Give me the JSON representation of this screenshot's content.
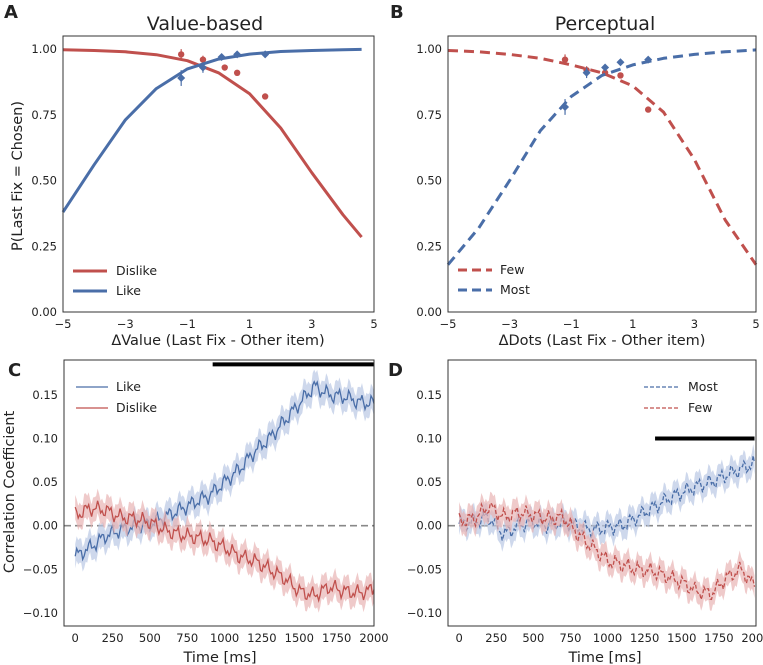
{
  "figure": {
    "panels": [
      {
        "id": "A",
        "letter": "A",
        "title": "Value-based"
      },
      {
        "id": "B",
        "letter": "B",
        "title": "Perceptual"
      },
      {
        "id": "C",
        "letter": "C",
        "title": ""
      },
      {
        "id": "D",
        "letter": "D",
        "title": ""
      }
    ]
  },
  "colors": {
    "red": "#c0504d",
    "blue": "#4a6ea8",
    "red_light": "#e8b4b4",
    "blue_light": "#b9c8e4",
    "sig_bar": "#000000",
    "zero_line": "#888888"
  },
  "chart_data": [
    {
      "id": "A",
      "type": "line",
      "title": "Value-based",
      "xlabel": "ΔValue (Last Fix - Other item)",
      "ylabel": "P(Last Fix = Chosen)",
      "xlim": [
        -5,
        5
      ],
      "ylim": [
        0,
        1.05
      ],
      "xticks": [
        -5,
        -3,
        -1,
        1,
        3,
        5
      ],
      "xtick_labels": [
        "−5",
        "−3",
        "−1",
        "1",
        "3",
        "5"
      ],
      "yticks": [
        0,
        0.25,
        0.5,
        0.75,
        1.0
      ],
      "ytick_labels": [
        "0.00",
        "0.25",
        "0.50",
        "0.75",
        "1.00"
      ],
      "line_style": "solid",
      "legend_loc": "lower-left",
      "series": [
        {
          "name": "Dislike",
          "color": "red",
          "curve": {
            "x": [
              -5,
              -4,
              -3,
              -2,
              -1,
              0,
              1,
              2,
              3,
              4,
              4.6
            ],
            "y": [
              0.998,
              0.995,
              0.99,
              0.979,
              0.956,
              0.91,
              0.83,
              0.7,
              0.53,
              0.37,
              0.285
            ]
          },
          "points": [
            {
              "x": -1.2,
              "y": 0.98,
              "err": 0.02
            },
            {
              "x": -0.5,
              "y": 0.96,
              "err": 0.015
            },
            {
              "x": 0.2,
              "y": 0.93,
              "err": 0.01
            },
            {
              "x": 0.6,
              "y": 0.91,
              "err": 0.01
            },
            {
              "x": 1.5,
              "y": 0.82,
              "err": 0.01
            }
          ]
        },
        {
          "name": "Like",
          "color": "blue",
          "curve": {
            "x": [
              -5,
              -4,
              -3,
              -2,
              -1,
              0,
              1,
              2,
              3,
              4,
              4.6
            ],
            "y": [
              0.38,
              0.56,
              0.73,
              0.85,
              0.925,
              0.962,
              0.981,
              0.991,
              0.995,
              0.998,
              0.999
            ]
          },
          "points": [
            {
              "x": -1.2,
              "y": 0.89,
              "err": 0.03
            },
            {
              "x": -0.5,
              "y": 0.93,
              "err": 0.02
            },
            {
              "x": 0.1,
              "y": 0.97,
              "err": 0.01
            },
            {
              "x": 0.6,
              "y": 0.98,
              "err": 0.01
            },
            {
              "x": 1.5,
              "y": 0.98,
              "err": 0.01
            }
          ]
        }
      ]
    },
    {
      "id": "B",
      "type": "line",
      "title": "Perceptual",
      "xlabel": "ΔDots (Last Fix - Other item)",
      "ylabel": "",
      "xlim": [
        -5,
        5
      ],
      "ylim": [
        0,
        1.05
      ],
      "xticks": [
        -5,
        -3,
        -1,
        1,
        3,
        5
      ],
      "xtick_labels": [
        "−5",
        "−3",
        "−1",
        "1",
        "3",
        "5"
      ],
      "yticks": [
        0,
        0.25,
        0.5,
        0.75,
        1.0
      ],
      "ytick_labels": [
        "0.00",
        "0.25",
        "0.50",
        "0.75",
        "1.00"
      ],
      "line_style": "dashed",
      "legend_loc": "lower-left",
      "series": [
        {
          "name": "Few",
          "color": "red",
          "curve": {
            "x": [
              -5,
              -4,
              -3,
              -2,
              -1,
              0,
              1,
              2,
              3,
              4,
              5
            ],
            "y": [
              0.995,
              0.99,
              0.98,
              0.965,
              0.94,
              0.91,
              0.86,
              0.76,
              0.58,
              0.35,
              0.18
            ]
          },
          "points": [
            {
              "x": -1.2,
              "y": 0.96,
              "err": 0.02
            },
            {
              "x": -0.5,
              "y": 0.92,
              "err": 0.015
            },
            {
              "x": 0.1,
              "y": 0.91,
              "err": 0.01
            },
            {
              "x": 0.6,
              "y": 0.9,
              "err": 0.01
            },
            {
              "x": 1.5,
              "y": 0.77,
              "err": 0.01
            }
          ]
        },
        {
          "name": "Most",
          "color": "blue",
          "curve": {
            "x": [
              -5,
              -4,
              -3,
              -2,
              -1,
              0,
              1,
              2,
              3,
              4,
              5
            ],
            "y": [
              0.18,
              0.32,
              0.5,
              0.69,
              0.82,
              0.9,
              0.94,
              0.965,
              0.98,
              0.99,
              0.997
            ]
          },
          "points": [
            {
              "x": -1.2,
              "y": 0.78,
              "err": 0.03
            },
            {
              "x": -0.5,
              "y": 0.91,
              "err": 0.02
            },
            {
              "x": 0.1,
              "y": 0.93,
              "err": 0.01
            },
            {
              "x": 0.6,
              "y": 0.95,
              "err": 0.01
            },
            {
              "x": 1.5,
              "y": 0.96,
              "err": 0.01
            }
          ]
        }
      ]
    },
    {
      "id": "C",
      "type": "line",
      "title": "",
      "xlabel": "Time [ms]",
      "ylabel": "Correlation Coefficient",
      "xlim": [
        -75,
        2000
      ],
      "ylim": [
        -0.115,
        0.19
      ],
      "xticks": [
        0,
        250,
        500,
        750,
        1000,
        1250,
        1500,
        1750,
        2000
      ],
      "xtick_labels": [
        "0",
        "250",
        "500",
        "750",
        "1000",
        "1250",
        "1500",
        "1750",
        "2000"
      ],
      "yticks": [
        -0.1,
        -0.05,
        0,
        0.05,
        0.1,
        0.15
      ],
      "ytick_labels": [
        "−0.10",
        "−0.05",
        "0.00",
        "0.05",
        "0.10",
        "0.15"
      ],
      "line_style": "solid",
      "legend_loc": "top-left",
      "sig_bar": [
        920,
        2000
      ],
      "sig_bar_y": 0.185,
      "series": [
        {
          "name": "Like",
          "color": "blue",
          "ci": 0.014,
          "x": [
            0,
            100,
            200,
            300,
            400,
            500,
            600,
            700,
            800,
            900,
            1000,
            1100,
            1200,
            1300,
            1400,
            1500,
            1600,
            1700,
            1800,
            1900,
            2000
          ],
          "y": [
            -0.035,
            -0.025,
            -0.012,
            -0.005,
            0.0,
            0.002,
            0.01,
            0.018,
            0.027,
            0.035,
            0.05,
            0.065,
            0.085,
            0.1,
            0.12,
            0.14,
            0.16,
            0.15,
            0.148,
            0.142,
            0.14
          ]
        },
        {
          "name": "Dislike",
          "color": "red",
          "ci": 0.014,
          "x": [
            0,
            100,
            200,
            300,
            400,
            500,
            600,
            700,
            800,
            900,
            1000,
            1100,
            1200,
            1300,
            1400,
            1500,
            1600,
            1700,
            1800,
            1900,
            2000
          ],
          "y": [
            0.012,
            0.02,
            0.018,
            0.01,
            0.008,
            0.004,
            -0.005,
            -0.01,
            -0.013,
            -0.017,
            -0.025,
            -0.035,
            -0.04,
            -0.05,
            -0.06,
            -0.075,
            -0.08,
            -0.07,
            -0.075,
            -0.077,
            -0.073
          ]
        }
      ]
    },
    {
      "id": "D",
      "type": "line",
      "title": "",
      "xlabel": "Time [ms]",
      "ylabel": "",
      "xlim": [
        -75,
        2000
      ],
      "ylim": [
        -0.115,
        0.19
      ],
      "xticks": [
        0,
        250,
        500,
        750,
        1000,
        1250,
        1500,
        1750,
        2000
      ],
      "xtick_labels": [
        "0",
        "250",
        "500",
        "750",
        "1000",
        "1250",
        "1500",
        "1750",
        "2000"
      ],
      "yticks": [
        -0.1,
        -0.05,
        0,
        0.05,
        0.1,
        0.15
      ],
      "ytick_labels": [
        "−0.10",
        "−0.05",
        "0.00",
        "0.05",
        "0.10",
        "0.15"
      ],
      "line_style": "dashed",
      "legend_loc": "top-right",
      "sig_bar": [
        1320,
        1990
      ],
      "sig_bar_y": 0.1,
      "series": [
        {
          "name": "Most",
          "color": "blue",
          "ci": 0.013,
          "x": [
            0,
            100,
            200,
            300,
            400,
            500,
            600,
            700,
            800,
            900,
            1000,
            1100,
            1200,
            1300,
            1400,
            1500,
            1600,
            1700,
            1800,
            1900,
            1990
          ],
          "y": [
            0.002,
            0.005,
            0.01,
            -0.01,
            0.0,
            0.005,
            0.0,
            0.005,
            0.0,
            -0.005,
            -0.002,
            0.0,
            0.01,
            0.02,
            0.03,
            0.038,
            0.045,
            0.05,
            0.058,
            0.065,
            0.072
          ]
        },
        {
          "name": "Few",
          "color": "red",
          "ci": 0.013,
          "x": [
            0,
            100,
            200,
            300,
            400,
            500,
            600,
            700,
            800,
            900,
            1000,
            1100,
            1200,
            1300,
            1400,
            1500,
            1600,
            1700,
            1800,
            1900,
            1990
          ],
          "y": [
            0.005,
            0.008,
            0.022,
            0.01,
            0.015,
            0.012,
            0.008,
            0.01,
            -0.01,
            -0.025,
            -0.04,
            -0.045,
            -0.05,
            -0.052,
            -0.058,
            -0.065,
            -0.075,
            -0.078,
            -0.06,
            -0.05,
            -0.07
          ]
        }
      ]
    }
  ]
}
